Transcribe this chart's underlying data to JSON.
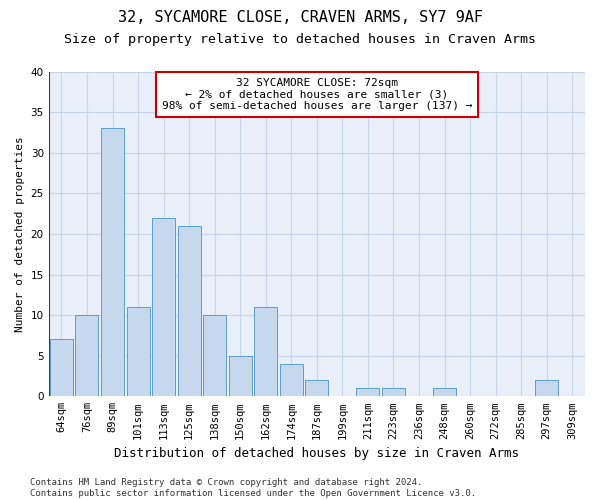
{
  "title": "32, SYCAMORE CLOSE, CRAVEN ARMS, SY7 9AF",
  "subtitle": "Size of property relative to detached houses in Craven Arms",
  "xlabel": "Distribution of detached houses by size in Craven Arms",
  "ylabel": "Number of detached properties",
  "categories": [
    "64sqm",
    "76sqm",
    "89sqm",
    "101sqm",
    "113sqm",
    "125sqm",
    "138sqm",
    "150sqm",
    "162sqm",
    "174sqm",
    "187sqm",
    "199sqm",
    "211sqm",
    "223sqm",
    "236sqm",
    "248sqm",
    "260sqm",
    "272sqm",
    "285sqm",
    "297sqm",
    "309sqm"
  ],
  "values": [
    7,
    10,
    33,
    11,
    22,
    21,
    10,
    5,
    11,
    4,
    2,
    0,
    1,
    1,
    0,
    1,
    0,
    0,
    0,
    2,
    0
  ],
  "bar_color": "#c5d8ed",
  "bar_edge_color": "#5a9fd4",
  "highlight_line_color": "#cc0000",
  "annotation_box_text": "32 SYCAMORE CLOSE: 72sqm\n← 2% of detached houses are smaller (3)\n98% of semi-detached houses are larger (137) →",
  "annotation_box_color": "#cc0000",
  "ylim": [
    0,
    40
  ],
  "yticks": [
    0,
    5,
    10,
    15,
    20,
    25,
    30,
    35,
    40
  ],
  "footnote": "Contains HM Land Registry data © Crown copyright and database right 2024.\nContains public sector information licensed under the Open Government Licence v3.0.",
  "background_color": "#ffffff",
  "grid_color": "#c8d4e8",
  "title_fontsize": 11,
  "subtitle_fontsize": 9.5,
  "xlabel_fontsize": 9,
  "ylabel_fontsize": 8,
  "tick_fontsize": 7.5,
  "annotation_fontsize": 8,
  "footnote_fontsize": 6.5
}
